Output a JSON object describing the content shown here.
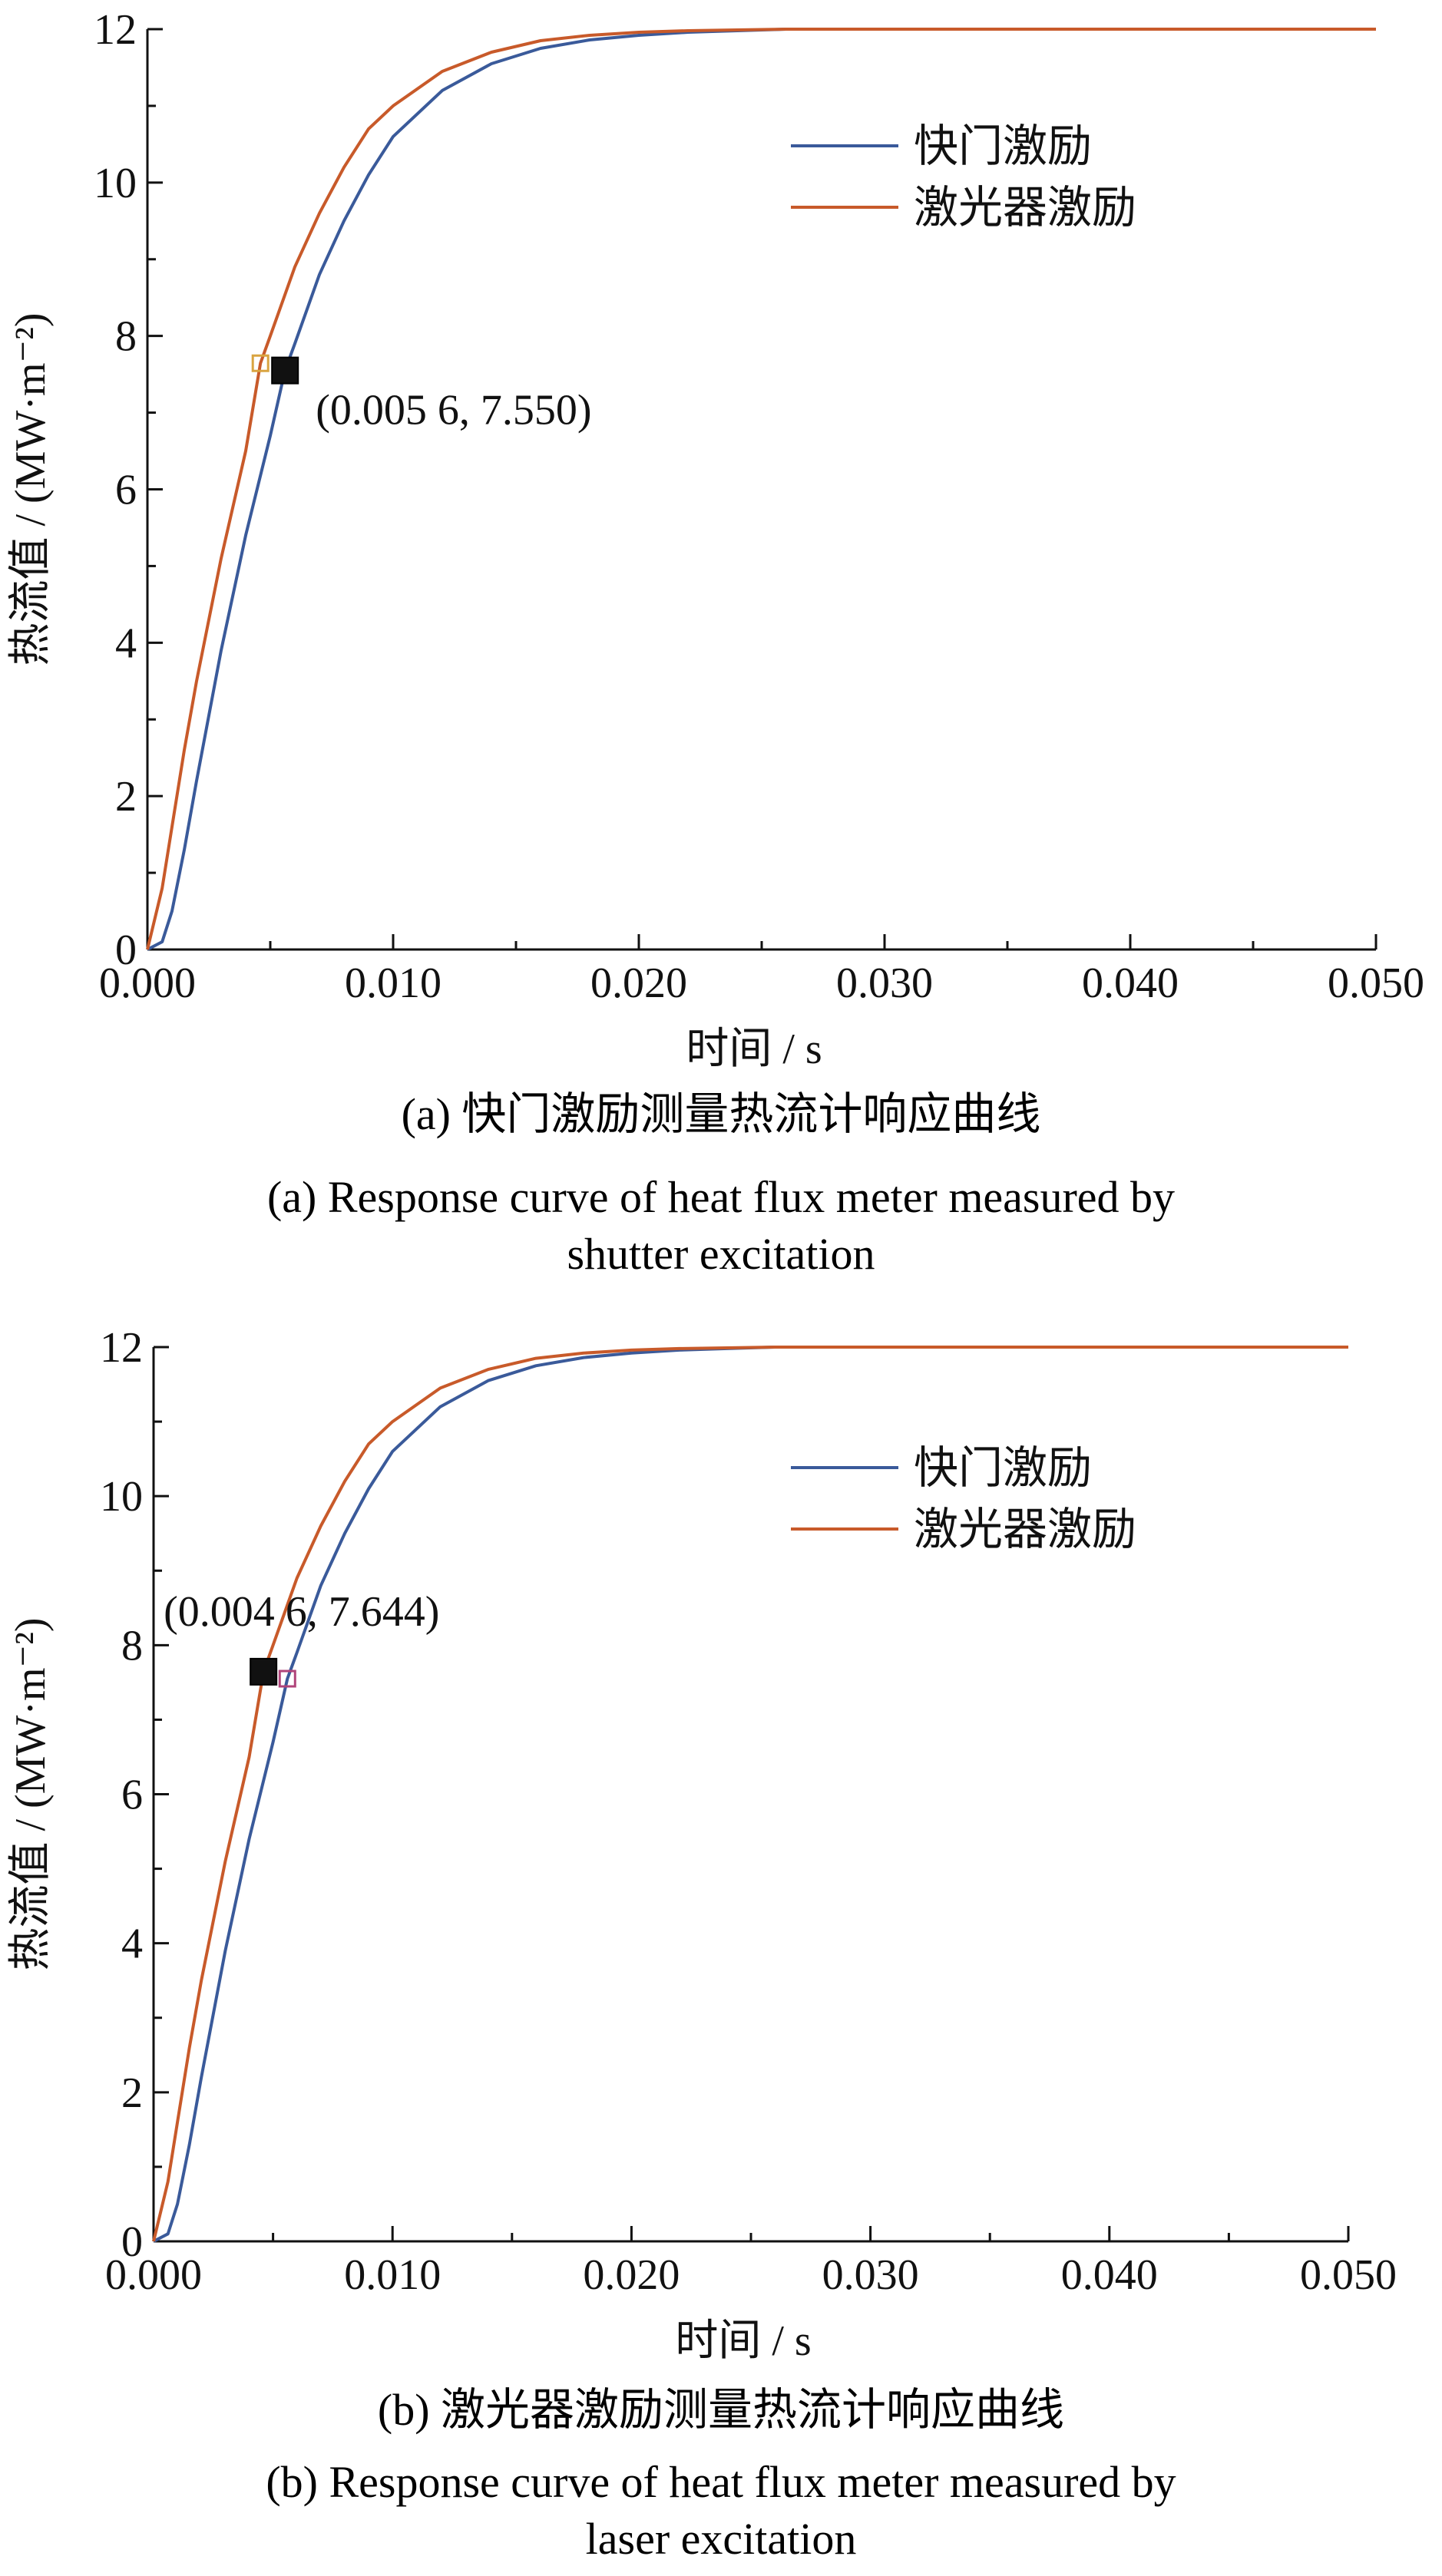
{
  "chart_data": [
    {
      "type": "line",
      "caption_zh": "(a) 快门激励测量热流计响应曲线",
      "caption_en_1": "(a) Response curve of heat flux meter measured by",
      "caption_en_2": "shutter excitation",
      "xlabel": "时间 / s",
      "ylabel": "热流值 / (MW·m⁻²)",
      "xlim": [
        0,
        0.05
      ],
      "ylim": [
        0,
        12
      ],
      "xticks": [
        0,
        0.01,
        0.02,
        0.03,
        0.04,
        0.05
      ],
      "xtick_labels": [
        "0.000",
        "0.010",
        "0.020",
        "0.030",
        "0.040",
        "0.050"
      ],
      "yticks": [
        0,
        2,
        4,
        6,
        8,
        10,
        12
      ],
      "ytick_labels": [
        "0",
        "2",
        "4",
        "6",
        "8",
        "10",
        "12"
      ],
      "legend_position": "upper-right",
      "grid": false,
      "series": [
        {
          "name": "快门激励",
          "color": "#3a5a9a",
          "x": [
            0,
            0.0006,
            0.001,
            0.0015,
            0.002,
            0.003,
            0.004,
            0.005,
            0.0056,
            0.006,
            0.007,
            0.008,
            0.009,
            0.01,
            0.012,
            0.014,
            0.016,
            0.018,
            0.02,
            0.022,
            0.024,
            0.026
          ],
          "y": [
            0,
            0.1,
            0.5,
            1.3,
            2.2,
            3.9,
            5.4,
            6.7,
            7.55,
            7.9,
            8.8,
            9.5,
            10.1,
            10.6,
            11.2,
            11.55,
            11.75,
            11.86,
            11.92,
            11.96,
            11.98,
            12.0
          ]
        },
        {
          "name": "激光器激励",
          "color": "#c85a2a",
          "x": [
            0,
            0.0006,
            0.001,
            0.0015,
            0.002,
            0.003,
            0.004,
            0.0046,
            0.005,
            0.006,
            0.007,
            0.008,
            0.009,
            0.01,
            0.012,
            0.014,
            0.016,
            0.018,
            0.02,
            0.022,
            0.024,
            0.026,
            0.03,
            0.035,
            0.04,
            0.045,
            0.05
          ],
          "y": [
            0,
            0.8,
            1.6,
            2.6,
            3.5,
            5.1,
            6.5,
            7.644,
            8.0,
            8.9,
            9.6,
            10.2,
            10.7,
            11.0,
            11.45,
            11.7,
            11.85,
            11.92,
            11.96,
            11.98,
            11.99,
            12.0,
            12.0,
            12.0,
            12.0,
            12.0,
            12.0
          ]
        }
      ],
      "markers": [
        {
          "x": 0.0056,
          "y": 7.55,
          "style": "filled",
          "color": "#111111"
        },
        {
          "x": 0.0046,
          "y": 7.644,
          "style": "hollow",
          "color": "#d9a441"
        }
      ],
      "annotation": {
        "text": "(0.005 6, 7.550)",
        "x": 0.0056,
        "y": 7.55
      }
    },
    {
      "type": "line",
      "caption_zh": "(b) 激光器激励测量热流计响应曲线",
      "caption_en_1": "(b) Response curve of heat flux meter measured by",
      "caption_en_2": "laser excitation",
      "xlabel": "时间 / s",
      "ylabel": "热流值 / (MW·m⁻²)",
      "xlim": [
        0,
        0.05
      ],
      "ylim": [
        0,
        12
      ],
      "xticks": [
        0,
        0.01,
        0.02,
        0.03,
        0.04,
        0.05
      ],
      "xtick_labels": [
        "0.000",
        "0.010",
        "0.020",
        "0.030",
        "0.040",
        "0.050"
      ],
      "yticks": [
        0,
        2,
        4,
        6,
        8,
        10,
        12
      ],
      "ytick_labels": [
        "0",
        "2",
        "4",
        "6",
        "8",
        "10",
        "12"
      ],
      "legend_position": "upper-right",
      "grid": false,
      "series": [
        {
          "name": "快门激励",
          "color": "#3a5a9a",
          "x": [
            0,
            0.0006,
            0.001,
            0.0015,
            0.002,
            0.003,
            0.004,
            0.005,
            0.0056,
            0.006,
            0.007,
            0.008,
            0.009,
            0.01,
            0.012,
            0.014,
            0.016,
            0.018,
            0.02,
            0.022,
            0.024,
            0.026
          ],
          "y": [
            0,
            0.1,
            0.5,
            1.3,
            2.2,
            3.9,
            5.4,
            6.7,
            7.55,
            7.9,
            8.8,
            9.5,
            10.1,
            10.6,
            11.2,
            11.55,
            11.75,
            11.86,
            11.92,
            11.96,
            11.98,
            12.0
          ]
        },
        {
          "name": "激光器激励",
          "color": "#c85a2a",
          "x": [
            0,
            0.0006,
            0.001,
            0.0015,
            0.002,
            0.003,
            0.004,
            0.0046,
            0.005,
            0.006,
            0.007,
            0.008,
            0.009,
            0.01,
            0.012,
            0.014,
            0.016,
            0.018,
            0.02,
            0.022,
            0.024,
            0.026,
            0.03,
            0.035,
            0.04,
            0.045,
            0.05
          ],
          "y": [
            0,
            0.8,
            1.6,
            2.6,
            3.5,
            5.1,
            6.5,
            7.644,
            8.0,
            8.9,
            9.6,
            10.2,
            10.7,
            11.0,
            11.45,
            11.7,
            11.85,
            11.92,
            11.96,
            11.98,
            11.99,
            12.0,
            12.0,
            12.0,
            12.0,
            12.0,
            12.0
          ]
        }
      ],
      "markers": [
        {
          "x": 0.0046,
          "y": 7.644,
          "style": "filled",
          "color": "#111111"
        },
        {
          "x": 0.0056,
          "y": 7.55,
          "style": "hollow",
          "color": "#b0447a"
        }
      ],
      "annotation": {
        "text": "(0.004 6, 7.644)",
        "x": 0.0046,
        "y": 7.644
      }
    }
  ]
}
